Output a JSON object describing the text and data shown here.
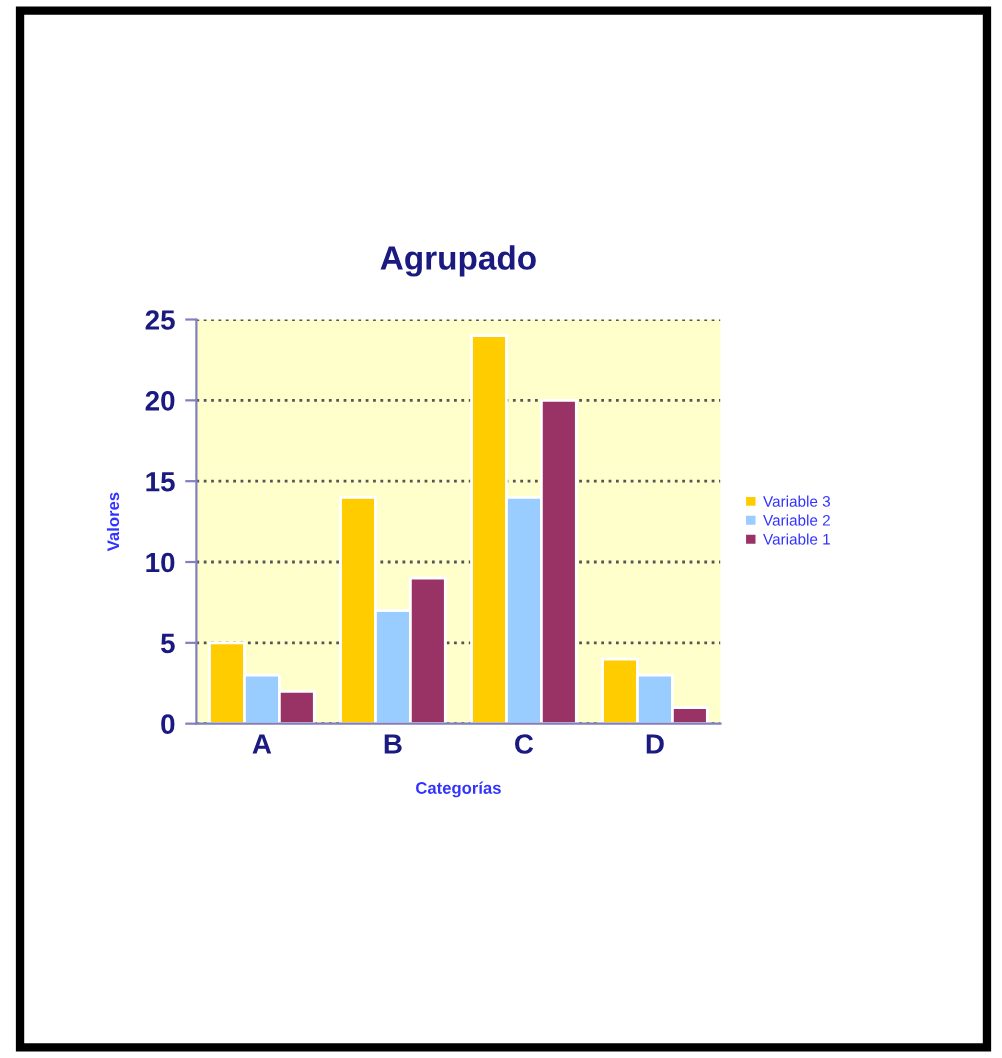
{
  "chart_data": {
    "type": "bar",
    "title": "Agrupado",
    "xlabel": "Categorías",
    "ylabel": "Valores",
    "categories": [
      "A",
      "B",
      "C",
      "D"
    ],
    "series": [
      {
        "name": "Variable 3",
        "color": "#ffcc00",
        "values": [
          5,
          14,
          24,
          4
        ]
      },
      {
        "name": "Variable 2",
        "color": "#99ccff",
        "values": [
          3,
          7,
          14,
          3
        ]
      },
      {
        "name": "Variable 1",
        "color": "#993366",
        "values": [
          2,
          9,
          20,
          1
        ]
      }
    ],
    "ylim": [
      0,
      25
    ],
    "yticks": [
      0,
      5,
      10,
      15,
      20,
      25
    ],
    "grid": "y",
    "legend": "right"
  }
}
